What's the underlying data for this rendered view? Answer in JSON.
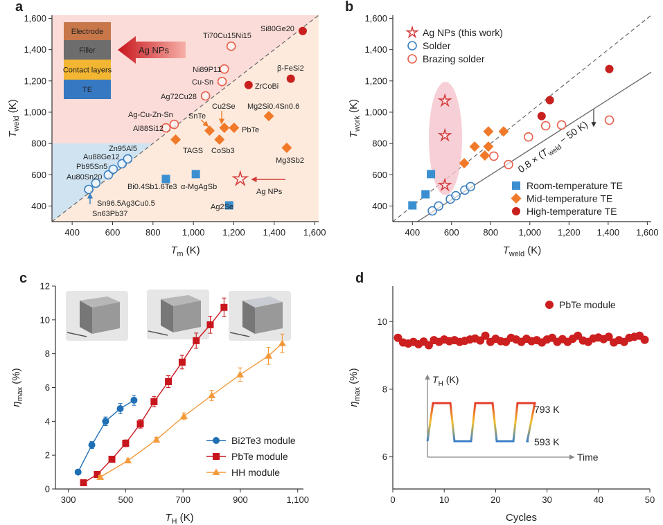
{
  "chart_data": [
    {
      "type": "scatter",
      "panel": "a",
      "x_label": [
        {
          "text": "T",
          "style": "italic"
        },
        {
          "text": "m",
          "style": "sub"
        },
        {
          "text": " (K)"
        }
      ],
      "y_label": [
        {
          "text": "T",
          "style": "italic"
        },
        {
          "text": "weld",
          "style": "sub"
        },
        {
          "text": " (K)"
        }
      ],
      "xlim": [
        300,
        1620
      ],
      "ylim": [
        300,
        1620
      ],
      "xticks": [
        400,
        600,
        800,
        {
          "value": 1000,
          "label": "1,000"
        },
        {
          "value": 1200,
          "label": "1,200"
        },
        {
          "value": 1400,
          "label": "1,400"
        },
        {
          "value": 1600,
          "label": "1,600"
        }
      ],
      "yticks": [
        400,
        600,
        800,
        {
          "value": 1000,
          "label": "1,000"
        },
        {
          "value": 1200,
          "label": "1,200"
        },
        {
          "value": 1400,
          "label": "1,400"
        },
        {
          "value": 1600,
          "label": "1,600"
        }
      ],
      "series": [
        {
          "marker": "circle-open",
          "color": "#3a7fc1",
          "x": [
            482,
            517,
            579,
            603,
            647,
            675
          ],
          "values": [
            506,
            546,
            599,
            635,
            670,
            701
          ]
        },
        {
          "marker": "circle-open",
          "color": "#e8604c",
          "x": [
            864,
            905,
            1060,
            1142,
            1153,
            1187
          ],
          "values": [
            900,
            922,
            1104,
            1196,
            1276,
            1422
          ]
        },
        {
          "marker": "circle",
          "color": "#c8201e",
          "x": [
            1273,
            1482,
            1541
          ],
          "values": [
            1174,
            1214,
            1519
          ]
        },
        {
          "marker": "diamond",
          "color": "#f07a2a",
          "x": [
            912,
            1080,
            1129,
            1153,
            1201,
            1373,
            1462
          ],
          "values": [
            825,
            882,
            825,
            900,
            900,
            975,
            772
          ]
        },
        {
          "marker": "square",
          "color": "#3b8fd0",
          "x": [
            864,
            1012,
            1177
          ],
          "values": [
            573,
            604,
            404
          ]
        },
        {
          "marker": "star",
          "color": "#d33a3a",
          "x": [
            1232
          ],
          "values": [
            573
          ]
        }
      ],
      "annotations": [
        {
          "text": "Zn95Al5",
          "color": "#3a7fc1"
        },
        {
          "text": "Au88Ge12",
          "color": "#3a7fc1"
        },
        {
          "text": "Pb95Sn5",
          "color": "#3a7fc1"
        },
        {
          "text": "Au80Sn20",
          "color": "#3a7fc1"
        },
        {
          "text": "Sn96.5Ag3Cu0.5",
          "color": "#3a7fc1"
        },
        {
          "text": "Sn63Pb37",
          "color": "#3a7fc1"
        },
        {
          "text": "Ti70Cu15Ni15",
          "color": "#d93a30"
        },
        {
          "text": "Ni89P11",
          "color": "#d93a30"
        },
        {
          "text": "Cu-Sn",
          "color": "#d93a30"
        },
        {
          "text": "Ag72Cu28",
          "color": "#d93a30"
        },
        {
          "text": "Ag-Cu-Zn-Sn",
          "color": "#d93a30"
        },
        {
          "text": "Al88Si12",
          "color": "#d93a30"
        },
        {
          "text": "Si80Ge20",
          "color": "#111111"
        },
        {
          "text": "β-FeSi2",
          "color": "#111111"
        },
        {
          "text": "ZrCoBi",
          "color": "#111111"
        },
        {
          "text": "Cu2Se",
          "color": "#111111"
        },
        {
          "text": "SnTe",
          "color": "#111111"
        },
        {
          "text": "PbTe",
          "color": "#111111"
        },
        {
          "text": "Mg2Si0.4Sn0.6",
          "color": "#111111"
        },
        {
          "text": "TAGS",
          "color": "#111111"
        },
        {
          "text": "CoSb3",
          "color": "#111111"
        },
        {
          "text": "Mg3Sb2",
          "color": "#111111"
        },
        {
          "text": "Bi0.4Sb1.6Te3",
          "color": "#111111"
        },
        {
          "text": "α-MgAgSb",
          "color": "#111111"
        },
        {
          "text": "Ag2Se",
          "color": "#111111"
        },
        {
          "text": "Ag NPs",
          "color": "#d93a30"
        }
      ],
      "inset_layers": [
        "Electrode",
        "Filler",
        "Contact layers",
        "TE"
      ],
      "inset_arrow": "Ag NPs"
    },
    {
      "type": "scatter",
      "panel": "b",
      "x_label": [
        {
          "text": "T",
          "style": "italic"
        },
        {
          "text": "weld",
          "style": "sub"
        },
        {
          "text": " (K)"
        }
      ],
      "y_label": [
        {
          "text": "T",
          "style": "italic"
        },
        {
          "text": "work",
          "style": "sub"
        },
        {
          "text": " (K)"
        }
      ],
      "xlim": [
        300,
        1620
      ],
      "ylim": [
        300,
        1620
      ],
      "xticks": [
        400,
        600,
        800,
        {
          "value": 1000,
          "label": "1,000"
        },
        {
          "value": 1200,
          "label": "1,200"
        },
        {
          "value": 1400,
          "label": "1,400"
        },
        {
          "value": 1600,
          "label": "1,600"
        }
      ],
      "yticks": [
        400,
        600,
        800,
        {
          "value": 1000,
          "label": "1,000"
        },
        {
          "value": 1200,
          "label": "1,200"
        },
        {
          "value": 1400,
          "label": "1,400"
        },
        {
          "value": 1600,
          "label": "1,600"
        }
      ],
      "series": [
        {
          "name": "Ag NPs (this work)",
          "marker": "star",
          "color": "#d33a3a",
          "x": [
            566,
            566,
            566
          ],
          "values": [
            1073,
            851,
            533
          ]
        },
        {
          "name": "Solder",
          "marker": "circle-open",
          "color": "#3a7fc1",
          "x": [
            502,
            534,
            594,
            622,
            668,
            697
          ],
          "values": [
            369,
            400,
            444,
            466,
            502,
            524
          ]
        },
        {
          "name": "Brazing solder",
          "marker": "circle-open",
          "color": "#e8604c",
          "x": [
            816,
            891,
            993,
            1081,
            1162,
            1406
          ],
          "values": [
            719,
            665,
            842,
            913,
            918,
            949
          ]
        },
        {
          "name": "Room-temperature TE",
          "marker": "square",
          "color": "#3b8fd0",
          "x": [
            400,
            467,
            495
          ],
          "values": [
            404,
            475,
            604
          ]
        },
        {
          "name": "Mid-temperature TE",
          "marker": "diamond",
          "color": "#f07a2a",
          "x": [
            665,
            718,
            770,
            788,
            788,
            866
          ],
          "values": [
            674,
            780,
            723,
            780,
            877,
            877
          ]
        },
        {
          "name": "High-temperature TE",
          "marker": "circle",
          "color": "#c8201e",
          "x": [
            1060,
            1102,
            1406
          ],
          "values": [
            975,
            1077,
            1276
          ]
        }
      ],
      "fit_line": {
        "slope": 0.8,
        "offset": 50
      },
      "fit_label": [
        {
          "text": "0.8 × ("
        },
        {
          "text": "T",
          "style": "italic"
        },
        {
          "text": "weld",
          "style": "sub"
        },
        {
          "text": " − 50 K)"
        }
      ]
    },
    {
      "type": "line",
      "panel": "c",
      "x_label": [
        {
          "text": "T",
          "style": "italic"
        },
        {
          "text": "H",
          "style": "sub"
        },
        {
          "text": " (K)"
        }
      ],
      "y_label": [
        {
          "text": "η",
          "style": "italic"
        },
        {
          "text": "max",
          "style": "sub"
        },
        {
          "text": " (%)"
        }
      ],
      "xlim": [
        255,
        1120
      ],
      "ylim": [
        0,
        12
      ],
      "xticks": [
        300,
        500,
        700,
        900,
        {
          "value": 1100,
          "label": "1,100"
        }
      ],
      "yticks": [
        0,
        2,
        4,
        6,
        8,
        10,
        12
      ],
      "series": [
        {
          "name": "Bi2Te3 module",
          "marker": "circle",
          "color": "#1f6fb4",
          "x": [
            334,
            382,
            430,
            481,
            529
          ],
          "values": [
            1.0,
            2.6,
            4.0,
            4.75,
            5.25
          ],
          "errors": [
            0.1,
            0.2,
            0.25,
            0.3,
            0.3
          ]
        },
        {
          "name": "PbTe module",
          "marker": "square",
          "color": "#c8161d",
          "x": [
            353,
            401,
            452,
            500,
            551,
            599,
            649,
            697,
            746,
            795,
            843
          ],
          "values": [
            0.37,
            0.86,
            1.76,
            2.7,
            3.85,
            5.16,
            6.35,
            7.5,
            8.77,
            9.71,
            10.74
          ],
          "errors": [
            0.1,
            0.1,
            0.15,
            0.2,
            0.25,
            0.3,
            0.35,
            0.4,
            0.45,
            0.5,
            0.55
          ]
        },
        {
          "name": "HH module",
          "marker": "triangle",
          "color": "#f39a3a",
          "x": [
            411,
            508,
            607,
            703,
            800,
            899,
            998,
            1046
          ],
          "values": [
            0.7,
            1.68,
            2.91,
            4.3,
            5.53,
            6.76,
            7.87,
            8.61
          ],
          "errors": [
            0.1,
            0.1,
            0.15,
            0.2,
            0.3,
            0.4,
            0.5,
            0.55
          ]
        }
      ]
    },
    {
      "type": "scatter",
      "panel": "d",
      "x_label": [
        {
          "text": "Cycles"
        }
      ],
      "y_label": [
        {
          "text": "η",
          "style": "italic"
        },
        {
          "text": "max",
          "style": "sub"
        },
        {
          "text": " (%)"
        }
      ],
      "xlim": [
        0,
        50
      ],
      "ylim": [
        5.05,
        11.05
      ],
      "xticks": [
        0,
        10,
        20,
        30,
        40,
        50
      ],
      "yticks": [
        6,
        8,
        10
      ],
      "series": [
        {
          "name": "PbTe module",
          "marker": "circle",
          "color": "#cc1f1f",
          "x": [
            1,
            2,
            3,
            4,
            5,
            6,
            7,
            8,
            9,
            10,
            11,
            12,
            13,
            14,
            15,
            16,
            17,
            18,
            19,
            20,
            21,
            22,
            23,
            24,
            25,
            26,
            27,
            28,
            29,
            30,
            31,
            32,
            33,
            34,
            35,
            36,
            37,
            38,
            39,
            40,
            41,
            42,
            43,
            44,
            45,
            46,
            47,
            48,
            49
          ],
          "values": [
            9.52,
            9.38,
            9.35,
            9.4,
            9.33,
            9.41,
            9.3,
            9.45,
            9.4,
            9.47,
            9.42,
            9.45,
            9.4,
            9.43,
            9.47,
            9.5,
            9.44,
            9.58,
            9.4,
            9.49,
            9.42,
            9.4,
            9.52,
            9.47,
            9.4,
            9.49,
            9.42,
            9.45,
            9.38,
            9.47,
            9.52,
            9.4,
            9.48,
            9.4,
            9.49,
            9.58,
            9.44,
            9.4,
            9.5,
            9.53,
            9.48,
            9.55,
            9.38,
            9.45,
            9.4,
            9.52,
            9.55,
            9.58,
            9.46
          ]
        }
      ],
      "inset_axis_label": [
        {
          "text": "T",
          "style": "italic"
        },
        {
          "text": "H",
          "style": "sub"
        },
        {
          "text": " (K)"
        }
      ],
      "inset_high": "793 K",
      "inset_low": "593 K",
      "inset_time": "Time"
    }
  ]
}
